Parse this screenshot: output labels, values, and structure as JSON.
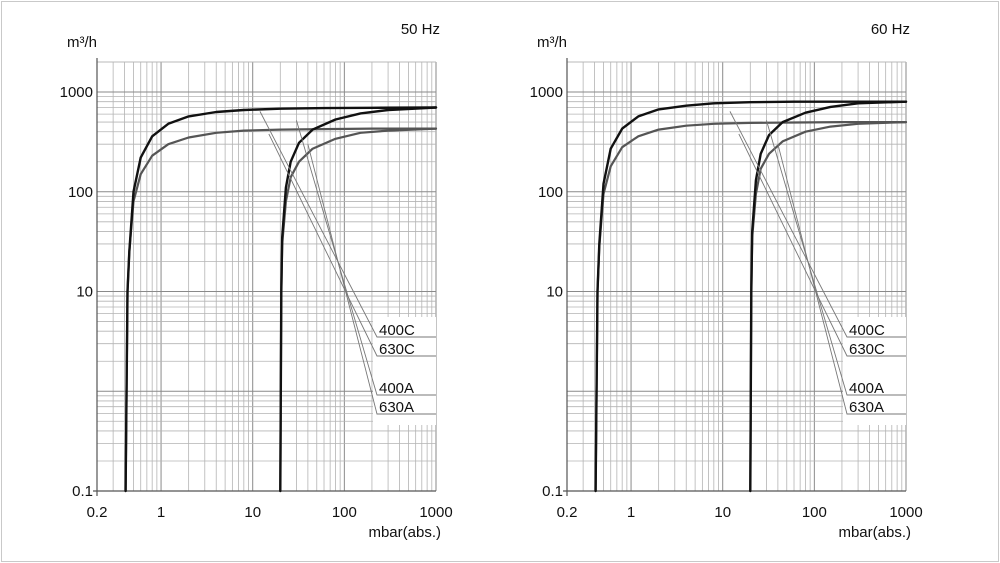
{
  "chart_data": [
    {
      "type": "line",
      "title": "50 Hz",
      "ylabel": "m³/h",
      "xlabel": "mbar(abs.)",
      "x_scale": "log",
      "y_scale": "log",
      "xlim": [
        0.2,
        1000
      ],
      "ylim": [
        0.1,
        2000
      ],
      "x_ticks": [
        {
          "v": 0.2,
          "label": "0.2"
        },
        {
          "v": 1,
          "label": "1"
        },
        {
          "v": 10,
          "label": "10"
        },
        {
          "v": 100,
          "label": "100"
        },
        {
          "v": 1000,
          "label": "1000"
        }
      ],
      "y_ticks": [
        {
          "v": 0.1,
          "label": "0.1"
        },
        {
          "v": 10,
          "label": "10"
        },
        {
          "v": 100,
          "label": "100"
        },
        {
          "v": 1000,
          "label": "1000"
        }
      ],
      "grid": true,
      "series": [
        {
          "name": "400C",
          "color": "#555555",
          "x": [
            0.41,
            0.43,
            0.45,
            0.5,
            0.6,
            0.8,
            1.2,
            2,
            4,
            8,
            20,
            60,
            200,
            1000
          ],
          "y": [
            0.1,
            10,
            25,
            80,
            150,
            230,
            300,
            350,
            390,
            410,
            420,
            425,
            430,
            430
          ]
        },
        {
          "name": "630C",
          "color": "#111111",
          "x": [
            0.41,
            0.43,
            0.45,
            0.5,
            0.6,
            0.8,
            1.2,
            2,
            4,
            8,
            20,
            60,
            200,
            1000
          ],
          "y": [
            0.1,
            10,
            25,
            100,
            220,
            360,
            480,
            570,
            630,
            660,
            680,
            690,
            695,
            700
          ]
        },
        {
          "name": "400A",
          "color": "#555555",
          "x": [
            20,
            20.5,
            21,
            23,
            26,
            32,
            45,
            80,
            150,
            300,
            1000
          ],
          "y": [
            0.1,
            10,
            30,
            80,
            140,
            200,
            270,
            340,
            390,
            410,
            430
          ]
        },
        {
          "name": "630A",
          "color": "#111111",
          "x": [
            20,
            20.5,
            21,
            23,
            26,
            32,
            45,
            80,
            150,
            300,
            1000
          ],
          "y": [
            0.1,
            10,
            35,
            110,
            200,
            310,
            420,
            530,
            610,
            660,
            700
          ]
        }
      ],
      "legend": [
        "400C",
        "630C",
        "400A",
        "630A"
      ],
      "legend_placement": "bottom-right, with leader lines"
    },
    {
      "type": "line",
      "title": "60 Hz",
      "ylabel": "m³/h",
      "xlabel": "mbar(abs.)",
      "x_scale": "log",
      "y_scale": "log",
      "xlim": [
        0.2,
        1000
      ],
      "ylim": [
        0.1,
        2000
      ],
      "x_ticks": [
        {
          "v": 0.2,
          "label": "0.2"
        },
        {
          "v": 1,
          "label": "1"
        },
        {
          "v": 10,
          "label": "10"
        },
        {
          "v": 100,
          "label": "100"
        },
        {
          "v": 1000,
          "label": "1000"
        }
      ],
      "y_ticks": [
        {
          "v": 0.1,
          "label": "0.1"
        },
        {
          "v": 10,
          "label": "10"
        },
        {
          "v": 100,
          "label": "100"
        },
        {
          "v": 1000,
          "label": "1000"
        }
      ],
      "grid": true,
      "series": [
        {
          "name": "400C",
          "color": "#555555",
          "x": [
            0.41,
            0.43,
            0.45,
            0.5,
            0.6,
            0.8,
            1.2,
            2,
            4,
            8,
            20,
            60,
            200,
            1000
          ],
          "y": [
            0.1,
            10,
            28,
            95,
            180,
            280,
            360,
            420,
            460,
            480,
            490,
            495,
            500,
            500
          ]
        },
        {
          "name": "630C",
          "color": "#111111",
          "x": [
            0.41,
            0.43,
            0.45,
            0.5,
            0.6,
            0.8,
            1.2,
            2,
            4,
            8,
            20,
            60,
            200,
            1000
          ],
          "y": [
            0.1,
            10,
            30,
            120,
            270,
            430,
            570,
            670,
            730,
            770,
            790,
            800,
            800,
            800
          ]
        },
        {
          "name": "400A",
          "color": "#555555",
          "x": [
            20,
            20.5,
            21,
            23,
            26,
            32,
            45,
            80,
            150,
            300,
            1000
          ],
          "y": [
            0.1,
            10,
            35,
            95,
            170,
            240,
            320,
            400,
            450,
            480,
            500
          ]
        },
        {
          "name": "630A",
          "color": "#111111",
          "x": [
            20,
            20.5,
            21,
            23,
            26,
            32,
            45,
            80,
            150,
            300,
            1000
          ],
          "y": [
            0.1,
            10,
            40,
            130,
            240,
            370,
            500,
            620,
            710,
            770,
            800
          ]
        }
      ],
      "legend": [
        "400C",
        "630C",
        "400A",
        "630A"
      ],
      "legend_placement": "bottom-right, with leader lines"
    }
  ]
}
